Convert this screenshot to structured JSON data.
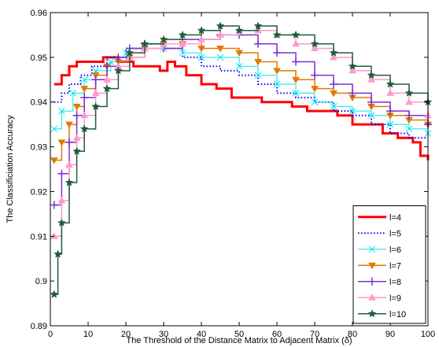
{
  "chart_data": {
    "type": "line",
    "title": "",
    "xlabel": "The Threshold of the Distance Matrix to Adjacent Matrix (δ)",
    "ylabel": "The Classificiation Accuracy",
    "xlim": [
      0,
      100
    ],
    "ylim": [
      0.89,
      0.96
    ],
    "xticks": [
      0,
      10,
      20,
      30,
      40,
      50,
      60,
      70,
      80,
      90,
      100
    ],
    "yticks": [
      0.89,
      0.9,
      0.91,
      0.92,
      0.93,
      0.94,
      0.95,
      0.96
    ],
    "ytick_labels": [
      "0.89",
      "0.9",
      "0.91",
      "0.92",
      "0.93",
      "0.94",
      "0.95",
      "0.96"
    ],
    "grid": false,
    "legend_position": "lower-right",
    "series": [
      {
        "name": "l=4",
        "color": "#ff0000",
        "marker": "none",
        "dash": "solid",
        "width": 3,
        "x": [
          1,
          2,
          3,
          5,
          7,
          10,
          14,
          18,
          22,
          26,
          29,
          31,
          33,
          36,
          40,
          44,
          48,
          52,
          56,
          60,
          64,
          68,
          72,
          76,
          80,
          84,
          88,
          92,
          96,
          98,
          100
        ],
        "y": [
          0.944,
          0.944,
          0.946,
          0.948,
          0.949,
          0.949,
          0.95,
          0.949,
          0.948,
          0.948,
          0.947,
          0.949,
          0.948,
          0.946,
          0.944,
          0.943,
          0.941,
          0.941,
          0.94,
          0.94,
          0.939,
          0.938,
          0.938,
          0.937,
          0.935,
          0.935,
          0.933,
          0.932,
          0.931,
          0.928,
          0.927
        ]
      },
      {
        "name": "l=5",
        "color": "#0000ff",
        "marker": "none",
        "dash": "dot",
        "width": 2,
        "x": [
          1,
          3,
          5,
          8,
          11,
          15,
          20,
          25,
          30,
          35,
          40,
          45,
          50,
          55,
          60,
          65,
          70,
          75,
          80,
          85,
          90,
          95,
          100
        ],
        "y": [
          0.94,
          0.942,
          0.944,
          0.946,
          0.948,
          0.95,
          0.952,
          0.953,
          0.952,
          0.95,
          0.948,
          0.947,
          0.946,
          0.944,
          0.942,
          0.941,
          0.94,
          0.938,
          0.937,
          0.935,
          0.933,
          0.932,
          0.932
        ]
      },
      {
        "name": "l=6",
        "color": "#00e5ee",
        "marker": "x",
        "dash": "solid",
        "width": 1,
        "x": [
          1,
          3,
          6,
          9,
          12,
          16,
          20,
          25,
          30,
          35,
          40,
          45,
          50,
          55,
          60,
          65,
          70,
          75,
          80,
          85,
          90,
          95,
          100
        ],
        "y": [
          0.934,
          0.938,
          0.942,
          0.945,
          0.947,
          0.949,
          0.951,
          0.952,
          0.952,
          0.951,
          0.95,
          0.95,
          0.948,
          0.946,
          0.944,
          0.942,
          0.94,
          0.939,
          0.938,
          0.937,
          0.935,
          0.934,
          0.933
        ]
      },
      {
        "name": "l=7",
        "color": "#e07b00",
        "marker": "triangle-down",
        "dash": "solid",
        "width": 1.5,
        "x": [
          1,
          3,
          5,
          7,
          9,
          12,
          15,
          18,
          21,
          25,
          30,
          35,
          40,
          45,
          50,
          55,
          60,
          65,
          70,
          75,
          80,
          85,
          90,
          95,
          100
        ],
        "y": [
          0.927,
          0.931,
          0.935,
          0.939,
          0.943,
          0.946,
          0.948,
          0.949,
          0.95,
          0.952,
          0.953,
          0.953,
          0.952,
          0.952,
          0.951,
          0.949,
          0.947,
          0.945,
          0.943,
          0.942,
          0.941,
          0.939,
          0.937,
          0.936,
          0.935
        ]
      },
      {
        "name": "l=8",
        "color": "#7b2ed6",
        "marker": "plus",
        "dash": "solid",
        "width": 1.5,
        "x": [
          1,
          3,
          5,
          7,
          9,
          12,
          15,
          18,
          21,
          25,
          30,
          35,
          40,
          45,
          50,
          55,
          60,
          65,
          70,
          75,
          80,
          85,
          90,
          95,
          100
        ],
        "y": [
          0.917,
          0.924,
          0.931,
          0.937,
          0.941,
          0.945,
          0.948,
          0.95,
          0.952,
          0.953,
          0.952,
          0.954,
          0.954,
          0.955,
          0.955,
          0.953,
          0.951,
          0.949,
          0.946,
          0.944,
          0.942,
          0.94,
          0.938,
          0.937,
          0.935
        ]
      },
      {
        "name": "l=9",
        "color": "#ff99cc",
        "marker": "triangle-up",
        "dash": "solid",
        "width": 1.5,
        "x": [
          1,
          3,
          5,
          7,
          9,
          12,
          15,
          18,
          21,
          25,
          30,
          35,
          40,
          45,
          50,
          55,
          60,
          65,
          70,
          75,
          80,
          85,
          90,
          95,
          100
        ],
        "y": [
          0.91,
          0.918,
          0.926,
          0.932,
          0.937,
          0.942,
          0.945,
          0.948,
          0.95,
          0.952,
          0.953,
          0.953,
          0.954,
          0.955,
          0.956,
          0.956,
          0.955,
          0.953,
          0.952,
          0.95,
          0.947,
          0.945,
          0.942,
          0.94,
          0.937
        ]
      },
      {
        "name": "l=10",
        "color": "#1f5c3a",
        "marker": "star",
        "dash": "solid",
        "width": 1.5,
        "x": [
          1,
          2,
          3,
          5,
          7,
          9,
          12,
          15,
          18,
          21,
          25,
          30,
          35,
          40,
          45,
          50,
          55,
          60,
          65,
          70,
          75,
          80,
          85,
          90,
          95,
          100
        ],
        "y": [
          0.897,
          0.906,
          0.913,
          0.922,
          0.929,
          0.934,
          0.939,
          0.943,
          0.947,
          0.951,
          0.953,
          0.954,
          0.955,
          0.956,
          0.957,
          0.956,
          0.957,
          0.955,
          0.955,
          0.953,
          0.951,
          0.948,
          0.946,
          0.944,
          0.942,
          0.94
        ]
      }
    ]
  }
}
